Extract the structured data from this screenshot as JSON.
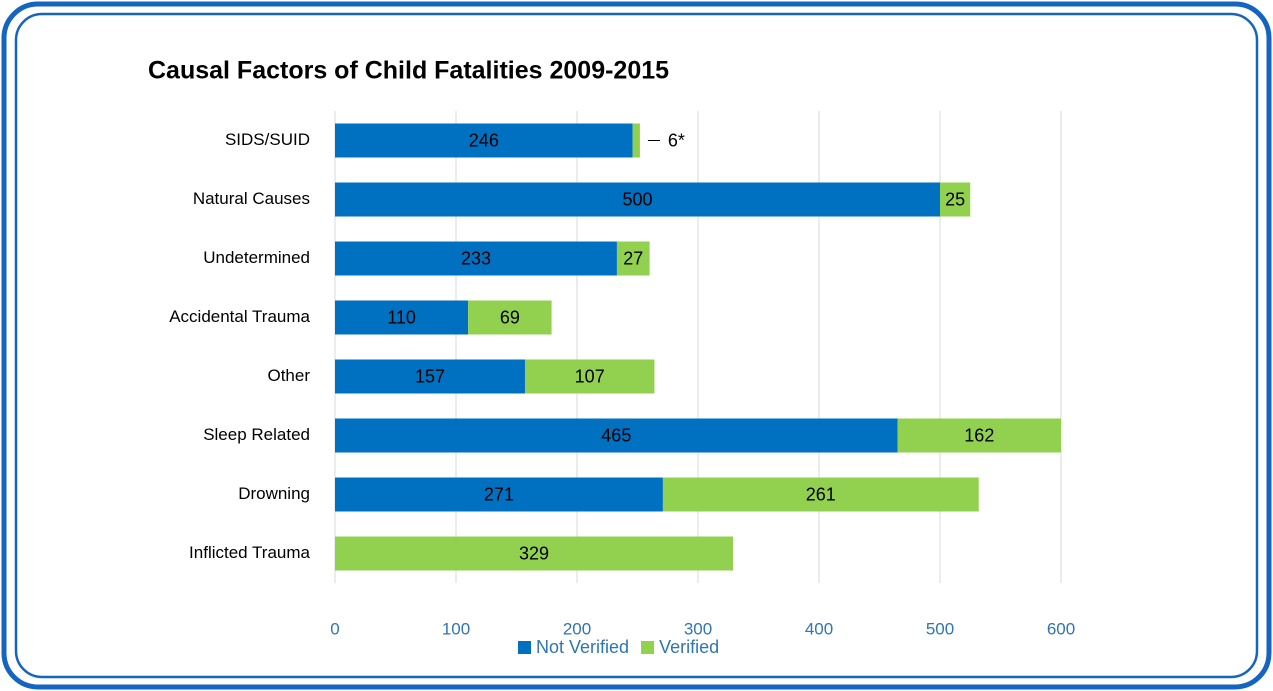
{
  "chart_data": {
    "type": "stacked_barh",
    "title": "Causal Factors of Child Fatalities 2009-2015",
    "categories": [
      "SIDS/SUID",
      "Natural Causes",
      "Undetermined",
      "Accidental Trauma",
      "Other",
      "Sleep Related",
      "Drowning",
      "Inflicted Trauma"
    ],
    "series": [
      {
        "name": "Not Verified",
        "color": "#0070c0",
        "values": [
          246,
          500,
          233,
          110,
          157,
          465,
          271,
          null
        ]
      },
      {
        "name": "Verified",
        "color": "#92d050",
        "values": [
          6,
          25,
          27,
          69,
          107,
          162,
          261,
          329
        ],
        "value_labels": [
          "6*",
          "25",
          "27",
          "69",
          "107",
          "162",
          "261",
          "329"
        ]
      }
    ],
    "xlim": [
      0,
      600
    ],
    "xticks": [
      0,
      100,
      200,
      300,
      400,
      500,
      600
    ],
    "grid": true,
    "legend": "bottom"
  }
}
